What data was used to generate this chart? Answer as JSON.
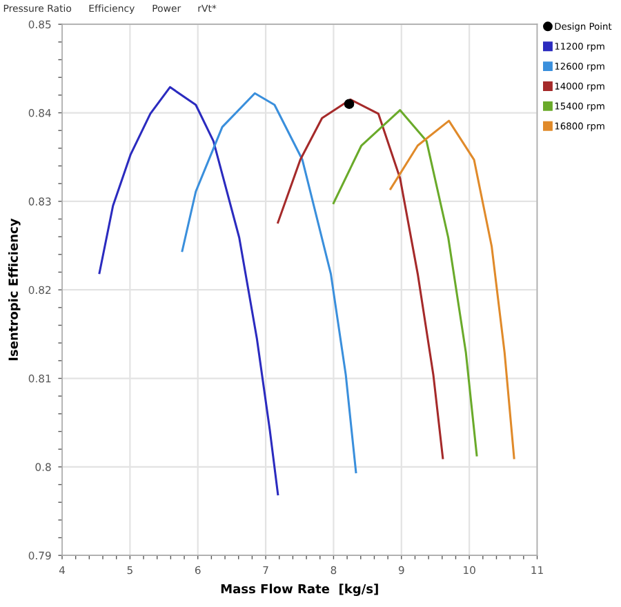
{
  "chart_data": {
    "type": "line",
    "xlabel": "Mass Flow Rate  [kg/s]",
    "ylabel": "Isentropic Efficiency",
    "annotations": [
      "Pressure Ratio",
      "Efficiency",
      "Power",
      "rVt*"
    ],
    "xlim": [
      4,
      11
    ],
    "xticks": [
      4,
      5,
      6,
      7,
      8,
      9,
      10,
      11
    ],
    "ylim": [
      0.79,
      0.85
    ],
    "yticks": [
      0.79,
      0.8,
      0.81,
      0.82,
      0.83,
      0.84,
      0.85
    ],
    "grid": true,
    "legend": "right",
    "marker": "none",
    "line_style": "solid",
    "series": [
      {
        "name": "Design Point",
        "type": "scatter",
        "marker": "circle",
        "color": "#000000",
        "x": [
          8.23
        ],
        "values": [
          0.841
        ]
      },
      {
        "name": "11200 rpm",
        "color": "#2b2bbf",
        "x": [
          4.55,
          4.75,
          5.01,
          5.3,
          5.59,
          5.97,
          6.23,
          6.61,
          6.87,
          7.06,
          7.18
        ],
        "values": [
          0.8219,
          0.8295,
          0.8353,
          0.8399,
          0.8429,
          0.8409,
          0.8368,
          0.8259,
          0.8145,
          0.8042,
          0.7969
        ]
      },
      {
        "name": "12600 rpm",
        "color": "#3a8fdc",
        "x": [
          5.77,
          5.97,
          6.36,
          6.84,
          7.13,
          7.54,
          7.96,
          8.18,
          8.33
        ],
        "values": [
          0.8244,
          0.8311,
          0.8384,
          0.8422,
          0.8409,
          0.8347,
          0.8218,
          0.8104,
          0.7994
        ]
      },
      {
        "name": "14000 rpm",
        "color": "#a52a2a",
        "x": [
          7.18,
          7.51,
          7.83,
          8.25,
          8.66,
          8.98,
          9.24,
          9.47,
          9.61
        ],
        "values": [
          0.8276,
          0.8347,
          0.8394,
          0.8415,
          0.8399,
          0.8326,
          0.8218,
          0.8104,
          0.801
        ]
      },
      {
        "name": "15400 rpm",
        "color": "#6aaa2a",
        "x": [
          8.0,
          8.41,
          8.98,
          9.37,
          9.69,
          9.95,
          10.11
        ],
        "values": [
          0.8298,
          0.8363,
          0.8403,
          0.8368,
          0.8259,
          0.8129,
          0.8013
        ]
      },
      {
        "name": "16800 rpm",
        "color": "#e08a2a",
        "x": [
          8.84,
          9.24,
          9.7,
          10.07,
          10.33,
          10.52,
          10.66
        ],
        "values": [
          0.8314,
          0.8363,
          0.8391,
          0.8347,
          0.8249,
          0.8129,
          0.801
        ]
      }
    ]
  }
}
